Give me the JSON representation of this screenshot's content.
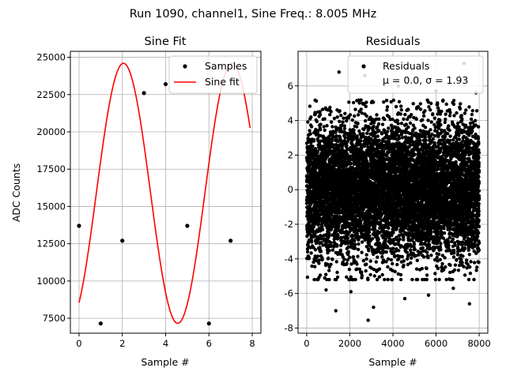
{
  "figure": {
    "suptitle": "Run 1090, channel1, Sine Freq.: 8.005 MHz"
  },
  "chart_data": [
    {
      "type": "scatter",
      "title": "Sine Fit",
      "xlabel": "Sample #",
      "ylabel": "ADC Counts",
      "xlim": [
        -0.4,
        8.4
      ],
      "ylim": [
        6500,
        25400
      ],
      "xticks": [
        0,
        2,
        4,
        6,
        8
      ],
      "yticks": [
        7500,
        10000,
        12500,
        15000,
        17500,
        20000,
        22500,
        25000
      ],
      "grid": true,
      "legend_position": "top-right",
      "series": [
        {
          "name": "Samples",
          "kind": "points",
          "color": "#000000",
          "x": [
            0,
            1,
            2,
            3,
            4,
            5,
            6,
            7
          ],
          "y": [
            13700,
            7150,
            12700,
            22600,
            23200,
            13700,
            7150,
            12700
          ]
        },
        {
          "name": "Sine fit",
          "kind": "line",
          "color": "#ff0000",
          "function": {
            "offset": 15880,
            "amplitude": 8720,
            "frequency": 0.1994,
            "phase": -1.0
          },
          "x_range": [
            0,
            7.9
          ]
        }
      ]
    },
    {
      "type": "scatter",
      "title": "Residuals",
      "xlabel": "Sample #",
      "ylabel": "",
      "xlim": [
        -400,
        8400
      ],
      "ylim": [
        -8.3,
        8.0
      ],
      "xticks": [
        0,
        2000,
        4000,
        6000,
        8000
      ],
      "yticks": [
        -8,
        -6,
        -4,
        -2,
        0,
        2,
        4,
        6
      ],
      "grid": true,
      "legend_position": "top-right",
      "series": [
        {
          "name": "Residuals",
          "kind": "points",
          "color": "#000000",
          "n_points": 8000,
          "mu": 0.0,
          "sigma": 1.93
        }
      ],
      "legend_stats": "μ = 0.0, σ = 1.93",
      "outliers": [
        {
          "x": 1350,
          "y": -7.0
        },
        {
          "x": 2850,
          "y": -7.55
        },
        {
          "x": 7550,
          "y": -6.6
        },
        {
          "x": 1500,
          "y": 6.8
        },
        {
          "x": 2700,
          "y": 6.6
        },
        {
          "x": 7300,
          "y": 7.3
        },
        {
          "x": 3100,
          "y": -6.8
        },
        {
          "x": 4550,
          "y": -6.3
        },
        {
          "x": 5650,
          "y": -6.1
        },
        {
          "x": 2050,
          "y": -5.9
        },
        {
          "x": 900,
          "y": -5.8
        },
        {
          "x": 6800,
          "y": -5.7
        },
        {
          "x": 4250,
          "y": 6.0
        },
        {
          "x": 6000,
          "y": 5.7
        },
        {
          "x": 7850,
          "y": 5.6
        }
      ]
    }
  ]
}
